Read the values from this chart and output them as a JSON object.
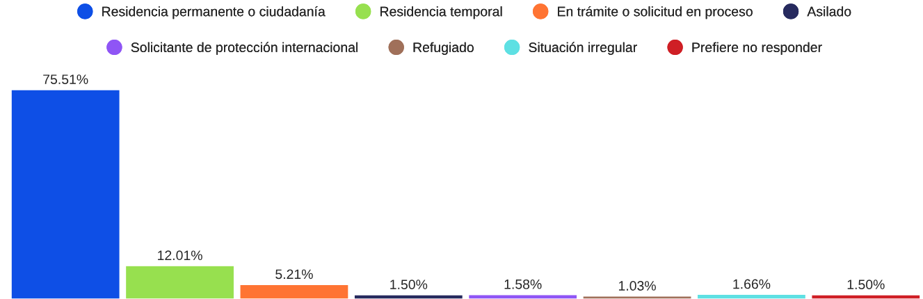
{
  "chart_data": {
    "type": "bar",
    "stacked": true,
    "categories": [
      null,
      null,
      null,
      null,
      null,
      null,
      null,
      null
    ],
    "series": [
      {
        "name": "Residencia permanente o ciudadanía",
        "color": "#0e4fe6",
        "values": [
          75.51,
          null,
          null,
          null,
          null,
          null,
          null,
          null
        ],
        "value_labels": [
          "75.51%",
          null,
          null,
          null,
          null,
          null,
          null,
          null
        ]
      },
      {
        "name": "Residencia temporal",
        "color": "#97e04f",
        "values": [
          null,
          12.01,
          null,
          null,
          null,
          null,
          null,
          null
        ],
        "value_labels": [
          null,
          "12.01%",
          null,
          null,
          null,
          null,
          null,
          null
        ]
      },
      {
        "name": "En trámite o solicitud en proceso",
        "color": "#ff7433",
        "values": [
          null,
          null,
          5.21,
          null,
          null,
          null,
          null,
          null
        ],
        "value_labels": [
          null,
          null,
          "5.21%",
          null,
          null,
          null,
          null,
          null
        ]
      },
      {
        "name": "Asilado",
        "color": "#262a5e",
        "values": [
          null,
          null,
          null,
          1.5,
          null,
          null,
          null,
          null
        ],
        "value_labels": [
          null,
          null,
          null,
          "1.50%",
          null,
          null,
          null,
          null
        ]
      },
      {
        "name": "Solicitante de protección internacional",
        "color": "#8f55f5",
        "values": [
          null,
          null,
          null,
          null,
          1.58,
          null,
          null,
          null
        ],
        "value_labels": [
          null,
          null,
          null,
          null,
          "1.58%",
          null,
          null,
          null
        ]
      },
      {
        "name": "Refugiado",
        "color": "#a0705a",
        "values": [
          null,
          null,
          null,
          null,
          null,
          1.03,
          null,
          null
        ],
        "value_labels": [
          null,
          null,
          null,
          null,
          null,
          "1.03%",
          null,
          null
        ]
      },
      {
        "name": "Situación irregular",
        "color": "#5ee0e3",
        "values": [
          null,
          null,
          null,
          null,
          null,
          null,
          1.66,
          null
        ],
        "value_labels": [
          null,
          null,
          null,
          null,
          null,
          null,
          "1.66%",
          null
        ]
      },
      {
        "name": "Prefiere no responder",
        "color": "#cf1f25",
        "values": [
          null,
          null,
          null,
          null,
          null,
          null,
          null,
          1.5
        ],
        "value_labels": [
          null,
          null,
          null,
          null,
          null,
          null,
          null,
          "1.50%"
        ]
      }
    ],
    "legend": "top",
    "tick_labels": false
  }
}
